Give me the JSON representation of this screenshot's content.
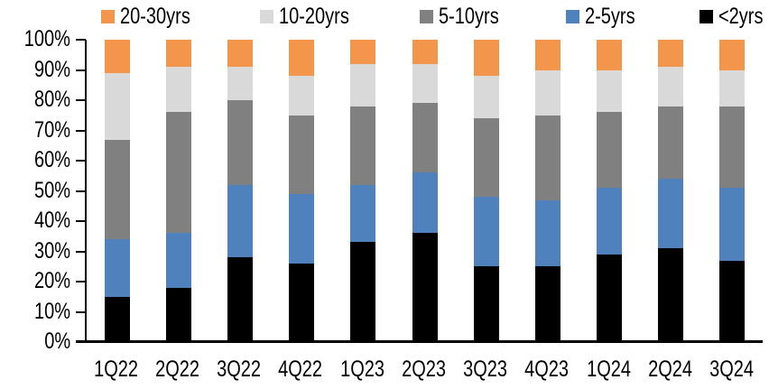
{
  "legend": {
    "items": [
      {
        "label": "20-30yrs",
        "color": "#F3954A"
      },
      {
        "label": "10-20yrs",
        "color": "#D9D9D9"
      },
      {
        "label": "5-10yrs",
        "color": "#808080"
      },
      {
        "label": "2-5yrs",
        "color": "#4F81BD"
      },
      {
        "label": "<2yrs",
        "color": "#000000"
      }
    ]
  },
  "y_axis": {
    "tick_labels": [
      "0%",
      "10%",
      "20%",
      "30%",
      "40%",
      "50%",
      "60%",
      "70%",
      "80%",
      "90%",
      "100%"
    ],
    "min": 0,
    "max": 100,
    "step": 10
  },
  "chart_data": {
    "type": "bar",
    "stacked": true,
    "percent_stacked": true,
    "unit": "%",
    "title": "",
    "xlabel": "",
    "ylabel": "",
    "ylim": [
      0,
      100
    ],
    "grid": false,
    "legend_position": "top",
    "categories": [
      "1Q22",
      "2Q22",
      "3Q22",
      "4Q22",
      "1Q23",
      "2Q23",
      "3Q23",
      "4Q23",
      "1Q24",
      "2Q24",
      "3Q24"
    ],
    "series": [
      {
        "name": "<2yrs",
        "color": "#000000",
        "values": [
          15,
          18,
          28,
          26,
          33,
          36,
          25,
          25,
          29,
          31,
          27
        ]
      },
      {
        "name": "2-5yrs",
        "color": "#4F81BD",
        "values": [
          19,
          18,
          24,
          23,
          19,
          20,
          23,
          22,
          22,
          23,
          24
        ]
      },
      {
        "name": "5-10yrs",
        "color": "#808080",
        "values": [
          33,
          40,
          28,
          26,
          26,
          23,
          26,
          28,
          25,
          24,
          27
        ]
      },
      {
        "name": "10-20yrs",
        "color": "#D9D9D9",
        "values": [
          22,
          15,
          11,
          13,
          14,
          13,
          14,
          15,
          14,
          13,
          12
        ]
      },
      {
        "name": "20-30yrs",
        "color": "#F3954A",
        "values": [
          11,
          9,
          9,
          12,
          8,
          8,
          12,
          10,
          10,
          9,
          10
        ]
      }
    ]
  }
}
